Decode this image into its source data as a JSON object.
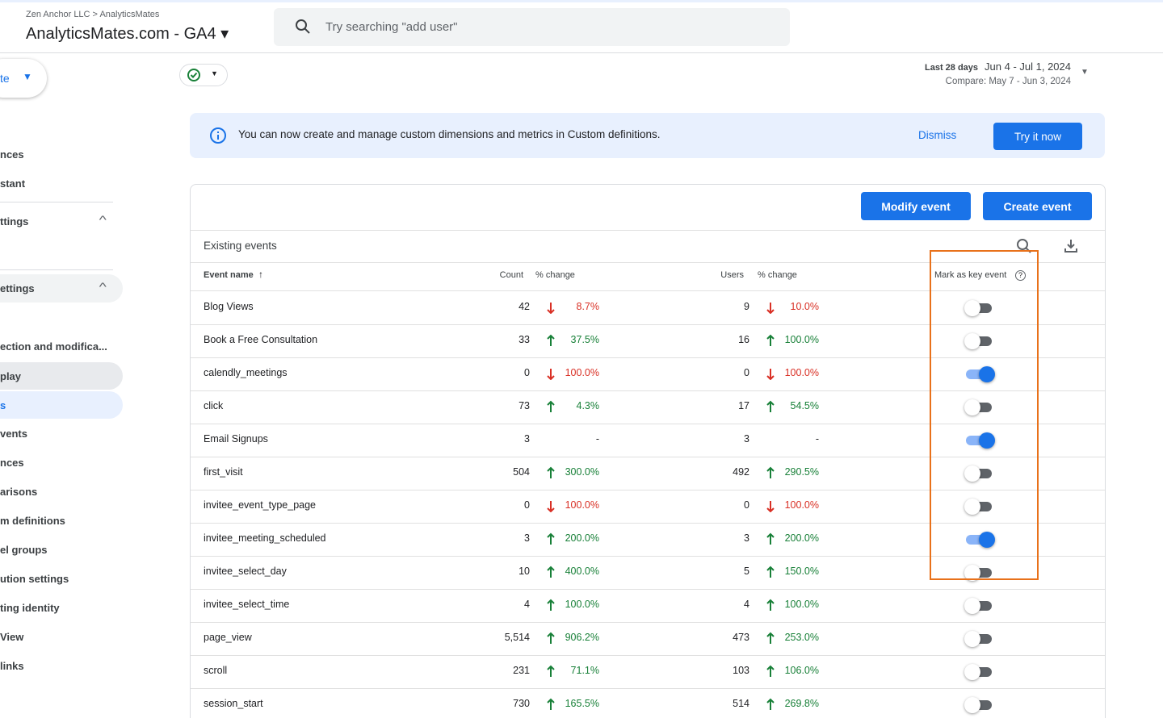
{
  "header": {
    "breadcrumb": [
      "Zen Anchor LLC",
      "AnalyticsMates"
    ],
    "property": "AnalyticsMates.com - GA4",
    "search_placeholder": "Try searching \"add user\""
  },
  "date_range": {
    "label": "Last 28 days",
    "range": "Jun 4 - Jul 1, 2024",
    "compare": "Compare: May 7 - Jun 3, 2024"
  },
  "sidebar": {
    "button": "te",
    "items": [
      "nces",
      "stant",
      "ttings",
      "ettings",
      "ection and modifica...",
      "play",
      "s",
      "vents",
      "nces",
      "arisons",
      "m definitions",
      "el groups",
      "ution settings",
      "ting identity",
      "View",
      "links"
    ]
  },
  "banner": {
    "text": "You can now create and manage custom dimensions and metrics in Custom definitions.",
    "dismiss": "Dismiss",
    "action": "Try it now"
  },
  "buttons": {
    "modify": "Modify event",
    "create": "Create event"
  },
  "table": {
    "title": "Existing events",
    "columns": [
      "Event name",
      "Count",
      "% change",
      "Users",
      "% change",
      "Mark as key event"
    ],
    "rows": [
      {
        "name": "Blog Views",
        "count": "42",
        "count_change": "8.7%",
        "count_trend": "down",
        "users": "9",
        "users_change": "10.0%",
        "users_trend": "down",
        "key_event": false
      },
      {
        "name": "Book a Free Consultation",
        "count": "33",
        "count_change": "37.5%",
        "count_trend": "up",
        "users": "16",
        "users_change": "100.0%",
        "users_trend": "up",
        "key_event": false
      },
      {
        "name": "calendly_meetings",
        "count": "0",
        "count_change": "100.0%",
        "count_trend": "down",
        "users": "0",
        "users_change": "100.0%",
        "users_trend": "down",
        "key_event": true
      },
      {
        "name": "click",
        "count": "73",
        "count_change": "4.3%",
        "count_trend": "up",
        "users": "17",
        "users_change": "54.5%",
        "users_trend": "up",
        "key_event": false
      },
      {
        "name": "Email Signups",
        "count": "3",
        "count_change": "-",
        "count_trend": null,
        "users": "3",
        "users_change": "-",
        "users_trend": null,
        "key_event": true
      },
      {
        "name": "first_visit",
        "count": "504",
        "count_change": "300.0%",
        "count_trend": "up",
        "users": "492",
        "users_change": "290.5%",
        "users_trend": "up",
        "key_event": false
      },
      {
        "name": "invitee_event_type_page",
        "count": "0",
        "count_change": "100.0%",
        "count_trend": "down",
        "users": "0",
        "users_change": "100.0%",
        "users_trend": "down",
        "key_event": false
      },
      {
        "name": "invitee_meeting_scheduled",
        "count": "3",
        "count_change": "200.0%",
        "count_trend": "up",
        "users": "3",
        "users_change": "200.0%",
        "users_trend": "up",
        "key_event": true
      },
      {
        "name": "invitee_select_day",
        "count": "10",
        "count_change": "400.0%",
        "count_trend": "up",
        "users": "5",
        "users_change": "150.0%",
        "users_trend": "up",
        "key_event": false
      },
      {
        "name": "invitee_select_time",
        "count": "4",
        "count_change": "100.0%",
        "count_trend": "up",
        "users": "4",
        "users_change": "100.0%",
        "users_trend": "up",
        "key_event": false
      },
      {
        "name": "page_view",
        "count": "5,514",
        "count_change": "906.2%",
        "count_trend": "up",
        "users": "473",
        "users_change": "253.0%",
        "users_trend": "up",
        "key_event": false
      },
      {
        "name": "scroll",
        "count": "231",
        "count_change": "71.1%",
        "count_trend": "up",
        "users": "103",
        "users_change": "106.0%",
        "users_trend": "up",
        "key_event": false
      },
      {
        "name": "session_start",
        "count": "730",
        "count_change": "165.5%",
        "count_trend": "up",
        "users": "514",
        "users_change": "269.8%",
        "users_trend": "up",
        "key_event": false
      }
    ]
  }
}
